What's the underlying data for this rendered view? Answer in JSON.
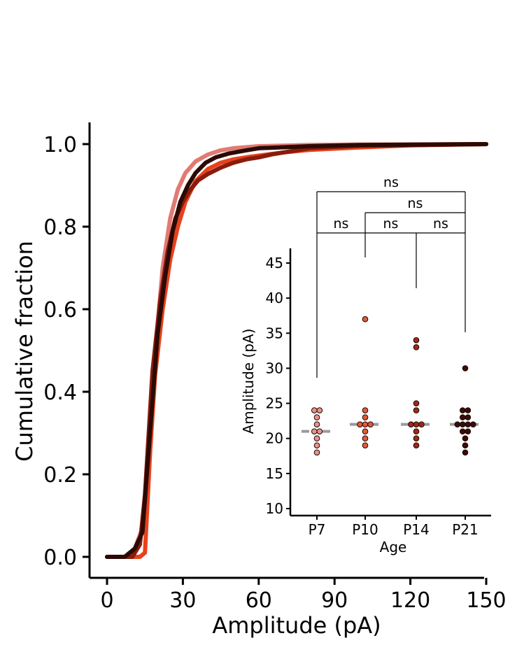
{
  "chart_data": [
    {
      "type": "line",
      "xlabel": "Amplitude (pA)",
      "ylabel": "Cumulative fraction",
      "xlim": [
        0,
        150
      ],
      "ylim": [
        0,
        1
      ],
      "xticks": [
        "0",
        "30",
        "60",
        "90",
        "120",
        "150"
      ],
      "yticks": [
        "0.0",
        "0.2",
        "0.4",
        "0.6",
        "0.8",
        "1.0"
      ],
      "grid": false,
      "legend": "none",
      "series": [
        {
          "color": "#e07b74",
          "points": [
            [
              0,
              0
            ],
            [
              7,
              0
            ],
            [
              11,
              0.02
            ],
            [
              14,
              0.07
            ],
            [
              17,
              0.3
            ],
            [
              20,
              0.56
            ],
            [
              22,
              0.7
            ],
            [
              25,
              0.82
            ],
            [
              28,
              0.89
            ],
            [
              31,
              0.93
            ],
            [
              35,
              0.958
            ],
            [
              40,
              0.975
            ],
            [
              45,
              0.985
            ],
            [
              50,
              0.99
            ],
            [
              60,
              0.995
            ],
            [
              80,
              0.998
            ],
            [
              100,
              0.999
            ],
            [
              150,
              1.0
            ]
          ]
        },
        {
          "color": "#e8421c",
          "points": [
            [
              0,
              0
            ],
            [
              13,
              0
            ],
            [
              15,
              0.01
            ],
            [
              17,
              0.25
            ],
            [
              19,
              0.44
            ],
            [
              22,
              0.6
            ],
            [
              25,
              0.72
            ],
            [
              28,
              0.8
            ],
            [
              31,
              0.86
            ],
            [
              35,
              0.91
            ],
            [
              40,
              0.94
            ],
            [
              45,
              0.955
            ],
            [
              50,
              0.963
            ],
            [
              55,
              0.968
            ],
            [
              60,
              0.972
            ],
            [
              70,
              0.98
            ],
            [
              80,
              0.986
            ],
            [
              100,
              0.992
            ],
            [
              120,
              0.997
            ],
            [
              150,
              1.0
            ]
          ]
        },
        {
          "color": "#8a1c0c",
          "points": [
            [
              0,
              0
            ],
            [
              10,
              0
            ],
            [
              13,
              0.03
            ],
            [
              15,
              0.15
            ],
            [
              18,
              0.45
            ],
            [
              21,
              0.62
            ],
            [
              24,
              0.74
            ],
            [
              27,
              0.82
            ],
            [
              30,
              0.86
            ],
            [
              33,
              0.89
            ],
            [
              36,
              0.912
            ],
            [
              40,
              0.928
            ],
            [
              45,
              0.943
            ],
            [
              50,
              0.955
            ],
            [
              55,
              0.963
            ],
            [
              60,
              0.968
            ],
            [
              65,
              0.975
            ],
            [
              70,
              0.98
            ],
            [
              80,
              0.99
            ],
            [
              100,
              0.996
            ],
            [
              150,
              1.0
            ]
          ]
        },
        {
          "color": "#2b0a05",
          "points": [
            [
              0,
              0
            ],
            [
              7,
              0
            ],
            [
              11,
              0.02
            ],
            [
              14,
              0.06
            ],
            [
              17,
              0.3
            ],
            [
              20,
              0.54
            ],
            [
              23,
              0.68
            ],
            [
              26,
              0.79
            ],
            [
              29,
              0.86
            ],
            [
              32,
              0.9
            ],
            [
              35,
              0.93
            ],
            [
              39,
              0.955
            ],
            [
              43,
              0.968
            ],
            [
              48,
              0.977
            ],
            [
              55,
              0.985
            ],
            [
              60,
              0.99
            ],
            [
              80,
              0.995
            ],
            [
              100,
              0.998
            ],
            [
              150,
              1.0
            ]
          ]
        }
      ]
    },
    {
      "type": "scatter",
      "xlabel": "Age",
      "ylabel": "Amplitude (pA)",
      "ylim": [
        10,
        45
      ],
      "categories": [
        "P7",
        "P10",
        "P14",
        "P21"
      ],
      "yticks": [
        "10",
        "15",
        "20",
        "25",
        "30",
        "35",
        "40",
        "45"
      ],
      "grid": false,
      "series": [
        {
          "category": "P7",
          "color": "#e8928a",
          "median": 21,
          "values": [
            24,
            24,
            23,
            22,
            21,
            21,
            20,
            19,
            18
          ]
        },
        {
          "category": "P10",
          "color": "#e25a3a",
          "median": 22,
          "values": [
            37,
            24,
            23,
            22,
            22,
            22,
            21,
            20,
            19
          ]
        },
        {
          "category": "P14",
          "color": "#9c2a1a",
          "median": 22,
          "values": [
            34,
            33,
            25,
            24,
            22,
            22,
            22,
            21,
            20,
            19
          ]
        },
        {
          "category": "P21",
          "color": "#3a0d06",
          "median": 22,
          "values": [
            30,
            24,
            24,
            23,
            23,
            22,
            22,
            22,
            22,
            21,
            21,
            20,
            19,
            18
          ]
        }
      ],
      "comparisons": [
        {
          "from": "P7",
          "to": "P21",
          "label": "ns"
        },
        {
          "from": "P10",
          "to": "P21",
          "label": "ns"
        },
        {
          "from": "P7",
          "to": "P10",
          "label": "ns"
        },
        {
          "from": "P10",
          "to": "P14",
          "label": "ns"
        },
        {
          "from": "P14",
          "to": "P21",
          "label": "ns"
        }
      ]
    }
  ]
}
